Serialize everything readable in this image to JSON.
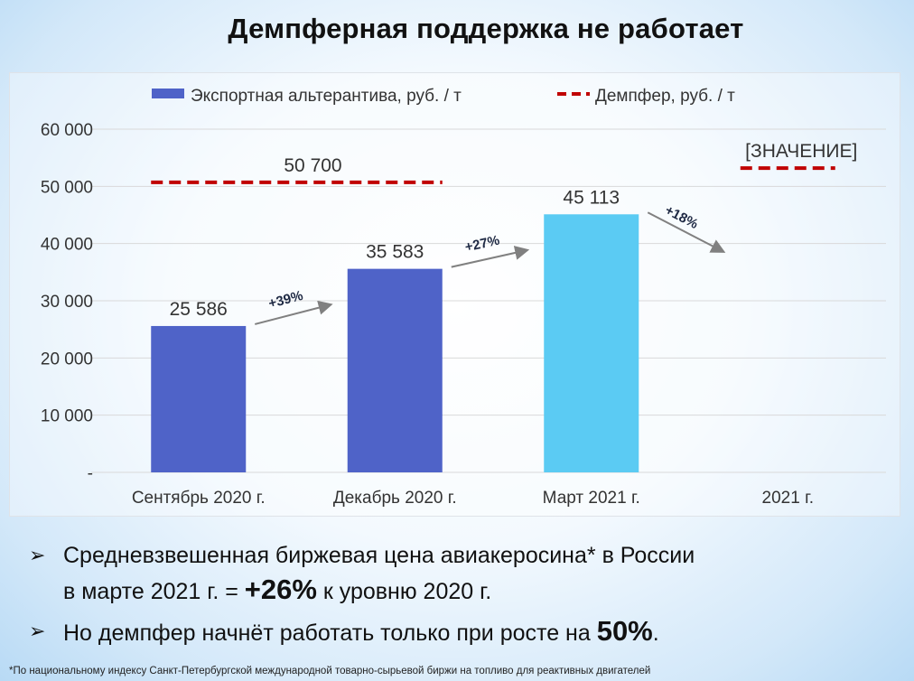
{
  "title": "Демпферная поддержка не работает",
  "chart_data": {
    "type": "bar",
    "categories": [
      "Сентябрь 2020 г.",
      "Декабрь 2020 г.",
      "Март 2021 г.",
      "2021 г."
    ],
    "series": [
      {
        "name": "Экспортная альтерантива, руб. / т",
        "type": "bar",
        "values": [
          25586,
          35583,
          45113,
          null
        ],
        "labels": [
          "25 586",
          "35 583",
          "45 113",
          ""
        ],
        "colors": [
          "#4f63c8",
          "#4f63c8",
          "#5bcbf3",
          null
        ]
      },
      {
        "name": "Демпфер, руб. / т",
        "type": "dashed-line",
        "segments": [
          {
            "from": 0,
            "to": 1,
            "value": 50700,
            "label": "50 700"
          },
          {
            "from": 3,
            "to": 3,
            "value": 53200,
            "label": "[ЗНАЧЕНИЕ]"
          }
        ],
        "color": "#c00000"
      }
    ],
    "growth_annotations": [
      {
        "from": 0,
        "to": 1,
        "label": "+39%"
      },
      {
        "from": 1,
        "to": 2,
        "label": "+27%"
      },
      {
        "from": 2,
        "to": 3,
        "label": "+18%"
      }
    ],
    "y_ticks": [
      "-",
      "10 000",
      "20 000",
      "30 000",
      "40 000",
      "50 000",
      "60 000"
    ],
    "ylim": [
      0,
      60000
    ],
    "grid": true,
    "legend_position": "top"
  },
  "bullets": [
    {
      "marker": "➢",
      "line1": "Средневзвешенная биржевая цена авиакеросина* в России",
      "line2_pre": "в марте 2021 г. = ",
      "line2_big": "+26%",
      "line2_post": " к уровню 2020 г."
    },
    {
      "marker": "➢",
      "pre": "Но демпфер начнёт работать только при росте на ",
      "big": "50%",
      "post": "."
    }
  ],
  "footnote": "*По национальному индексу Санкт-Петербургской международной товарно-сырьевой биржи на топливо для реактивных двигателей"
}
